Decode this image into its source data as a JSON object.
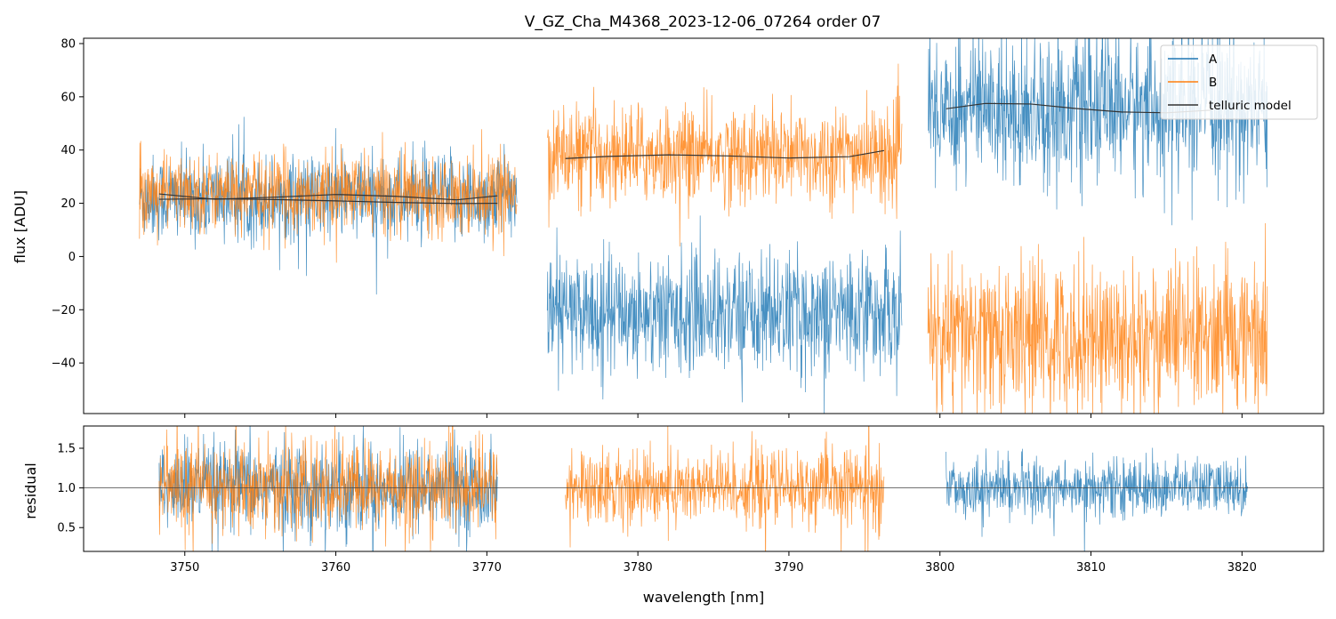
{
  "chart_data": [
    {
      "type": "line",
      "panel": "flux",
      "title": "V_GZ_Cha_M4368_2023-12-06_07264  order 07",
      "xlabel": "",
      "ylabel": "flux [ADU]",
      "xlim": [
        3743.3,
        3825.4
      ],
      "ylim": [
        -59,
        82
      ],
      "yticks": [
        -40,
        -20,
        0,
        20,
        40,
        60,
        80
      ],
      "ytick_labels": [
        "−40",
        "−20",
        "0",
        "20",
        "40",
        "60",
        "80"
      ],
      "xticks": [
        3750,
        3760,
        3770,
        3780,
        3790,
        3800,
        3810,
        3820
      ],
      "legend": [
        "A",
        "B",
        "telluric model"
      ],
      "legend_position": "top-right",
      "colors": {
        "A": "#1f77b4",
        "B": "#ff7f0e",
        "model": "#333333"
      },
      "series": [
        {
          "name": "A",
          "segment": 1,
          "x_range": [
            3747.0,
            3772.0
          ],
          "mean": 22,
          "noise_sd": 8,
          "note": "dense noisy spectrum"
        },
        {
          "name": "B",
          "segment": 1,
          "x_range": [
            3747.0,
            3772.0
          ],
          "mean": 24,
          "noise_sd": 7
        },
        {
          "name": "A",
          "segment": 2,
          "x_range": [
            3774.0,
            3797.5
          ],
          "mean": -21,
          "noise_sd": 11
        },
        {
          "name": "B",
          "segment": 2,
          "x_range": [
            3774.0,
            3797.5
          ],
          "mean": 38,
          "noise_sd": 9
        },
        {
          "name": "A",
          "segment": 3,
          "x_range": [
            3799.2,
            3821.7
          ],
          "mean": 56,
          "noise_sd": 14
        },
        {
          "name": "B",
          "segment": 3,
          "x_range": [
            3799.2,
            3821.7
          ],
          "mean": -30,
          "noise_sd": 14
        },
        {
          "name": "telluric model",
          "segment": 1,
          "x": [
            3748.3,
            3752,
            3756,
            3760,
            3764,
            3768,
            3770.7
          ],
          "y": [
            23.5,
            21.5,
            22.3,
            23.3,
            22.6,
            21.3,
            22.8
          ]
        },
        {
          "name": "telluric model",
          "segment": 1,
          "x": [
            3748.3,
            3752,
            3756,
            3760,
            3764,
            3768,
            3770.7
          ],
          "y": [
            21.5,
            21.7,
            21.4,
            20.9,
            20.3,
            19.9,
            20.0
          ]
        },
        {
          "name": "telluric model",
          "segment": 2,
          "x": [
            3775.2,
            3778,
            3782,
            3786,
            3790,
            3794,
            3796.3
          ],
          "y": [
            36.8,
            37.6,
            38.2,
            37.8,
            37.0,
            37.5,
            39.8
          ]
        },
        {
          "name": "telluric model",
          "segment": 3,
          "x": [
            3800.4,
            3803,
            3806,
            3809,
            3812,
            3815,
            3818
          ],
          "y": [
            55.5,
            57.5,
            57.3,
            55.6,
            54.3,
            54.0,
            55.0
          ]
        }
      ]
    },
    {
      "type": "line",
      "panel": "residual",
      "xlabel": "wavelength [nm]",
      "ylabel": "residual",
      "xlim": [
        3743.3,
        3825.4
      ],
      "ylim": [
        0.2,
        1.78
      ],
      "yticks": [
        0.5,
        1.0,
        1.5
      ],
      "ytick_labels": [
        "0.5",
        "1.0",
        "1.5"
      ],
      "xticks": [
        3750,
        3760,
        3770,
        3780,
        3790,
        3800,
        3810,
        3820
      ],
      "xtick_labels": [
        "3750",
        "3760",
        "3770",
        "3780",
        "3790",
        "3800",
        "3810",
        "3820"
      ],
      "reference_line": 1.0,
      "series": [
        {
          "name": "A",
          "segment": 1,
          "x_range": [
            3748.3,
            3770.7
          ],
          "mean": 1.0,
          "noise_sd": 0.28
        },
        {
          "name": "B",
          "segment": 1,
          "x_range": [
            3748.3,
            3770.7
          ],
          "mean": 1.0,
          "noise_sd": 0.28
        },
        {
          "name": "B",
          "segment": 2,
          "x_range": [
            3775.2,
            3796.3
          ],
          "mean": 1.0,
          "noise_sd": 0.24
        },
        {
          "name": "A",
          "segment": 3,
          "x_range": [
            3800.4,
            3820.4
          ],
          "mean": 1.0,
          "noise_sd": 0.18
        }
      ]
    }
  ]
}
